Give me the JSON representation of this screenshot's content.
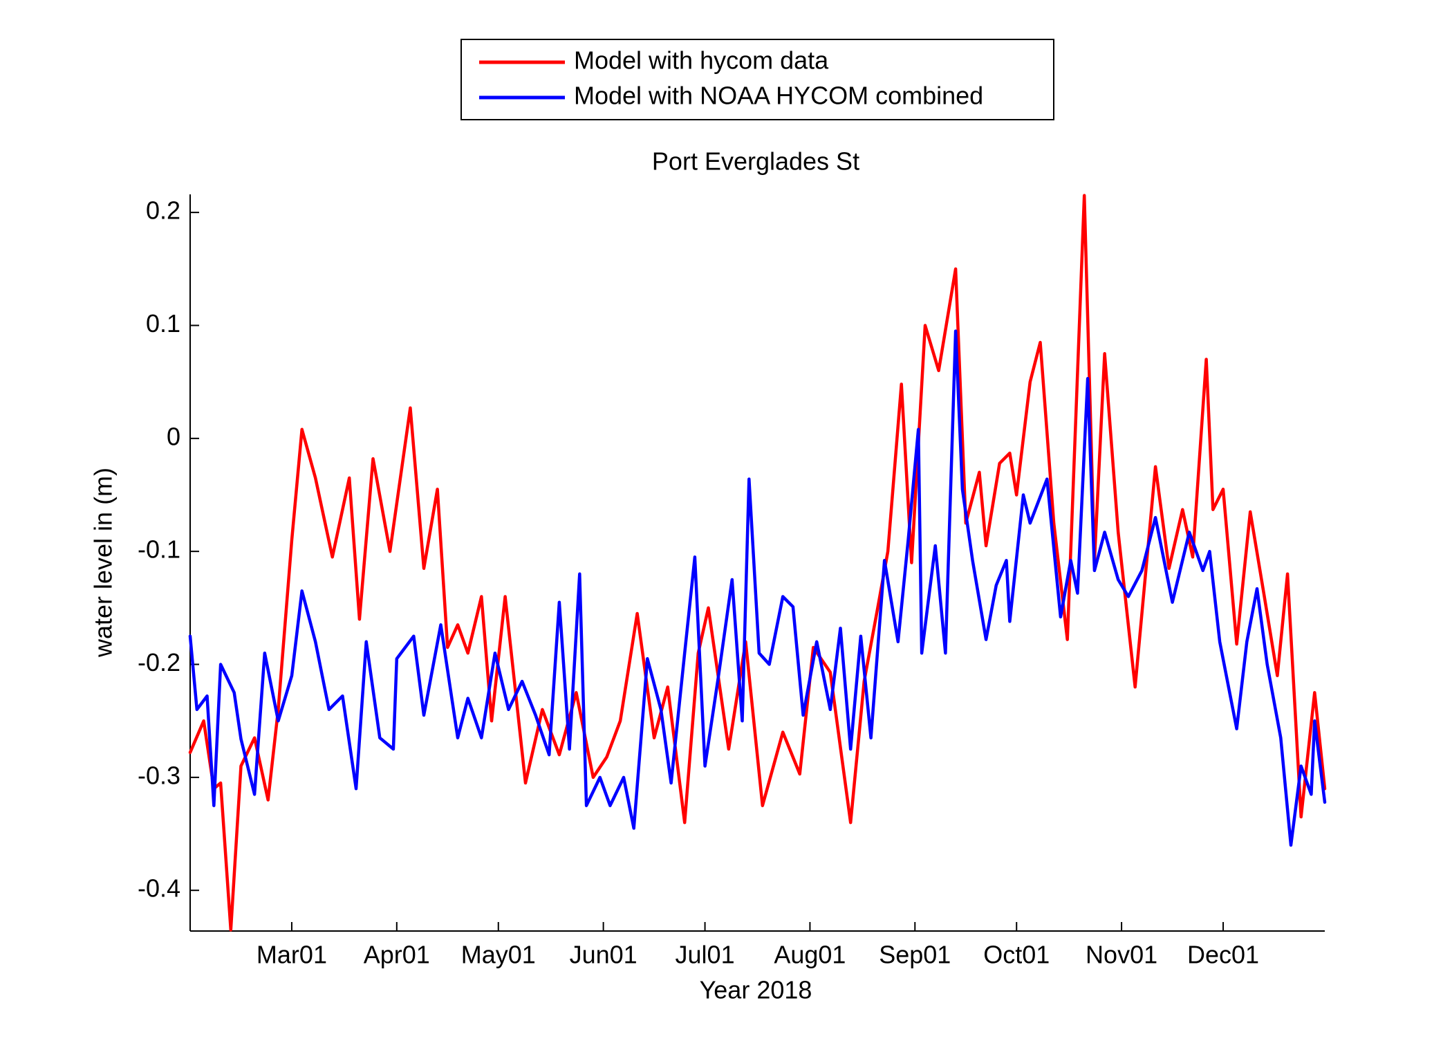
{
  "chart_data": {
    "type": "line",
    "title": "Port Everglades St",
    "xlabel": "Year 2018",
    "ylabel": "water level in (m)",
    "xlim": [
      "2018-01-30",
      "2018-12-31"
    ],
    "xticks": [
      {
        "value": "2018-03-01",
        "label": "Mar01"
      },
      {
        "value": "2018-04-01",
        "label": "Apr01"
      },
      {
        "value": "2018-05-01",
        "label": "May01"
      },
      {
        "value": "2018-06-01",
        "label": "Jun01"
      },
      {
        "value": "2018-07-01",
        "label": "Jul01"
      },
      {
        "value": "2018-08-01",
        "label": "Aug01"
      },
      {
        "value": "2018-09-01",
        "label": "Sep01"
      },
      {
        "value": "2018-10-01",
        "label": "Oct01"
      },
      {
        "value": "2018-11-01",
        "label": "Nov01"
      },
      {
        "value": "2018-12-01",
        "label": "Dec01"
      }
    ],
    "ylim": [
      -0.436,
      0.216
    ],
    "yticks": [
      -0.4,
      -0.3,
      -0.2,
      -0.1,
      0,
      0.1,
      0.2
    ],
    "grid": false,
    "legend": "top",
    "series": [
      {
        "name": "Model with hycom data",
        "color": "#ff0000",
        "x": [
          "2018-01-30",
          "2018-02-03",
          "2018-02-06",
          "2018-02-08",
          "2018-02-11",
          "2018-02-14",
          "2018-02-18",
          "2018-02-22",
          "2018-02-25",
          "2018-03-01",
          "2018-03-04",
          "2018-03-08",
          "2018-03-13",
          "2018-03-18",
          "2018-03-21",
          "2018-03-25",
          "2018-03-30",
          "2018-04-05",
          "2018-04-09",
          "2018-04-13",
          "2018-04-16",
          "2018-04-19",
          "2018-04-22",
          "2018-04-26",
          "2018-04-29",
          "2018-05-03",
          "2018-05-09",
          "2018-05-14",
          "2018-05-19",
          "2018-05-24",
          "2018-05-29",
          "2018-06-02",
          "2018-06-06",
          "2018-06-11",
          "2018-06-16",
          "2018-06-20",
          "2018-06-25",
          "2018-06-29",
          "2018-07-02",
          "2018-07-08",
          "2018-07-13",
          "2018-07-18",
          "2018-07-24",
          "2018-07-29",
          "2018-08-02",
          "2018-08-07",
          "2018-08-13",
          "2018-08-17",
          "2018-08-21",
          "2018-08-24",
          "2018-08-28",
          "2018-08-31",
          "2018-09-04",
          "2018-09-08",
          "2018-09-13",
          "2018-09-16",
          "2018-09-20",
          "2018-09-22",
          "2018-09-26",
          "2018-09-29",
          "2018-10-01",
          "2018-10-05",
          "2018-10-08",
          "2018-10-12",
          "2018-10-16",
          "2018-10-21",
          "2018-10-24",
          "2018-10-27",
          "2018-10-31",
          "2018-11-05",
          "2018-11-11",
          "2018-11-15",
          "2018-11-19",
          "2018-11-22",
          "2018-11-26",
          "2018-11-28",
          "2018-12-01",
          "2018-12-05",
          "2018-12-09",
          "2018-12-13",
          "2018-12-17",
          "2018-12-20",
          "2018-12-24",
          "2018-12-28",
          "2018-12-31"
        ],
        "values": [
          -0.278,
          -0.25,
          -0.31,
          -0.305,
          -0.435,
          -0.29,
          -0.265,
          -0.32,
          -0.24,
          -0.09,
          0.008,
          -0.035,
          -0.105,
          -0.035,
          -0.16,
          -0.018,
          -0.1,
          0.027,
          -0.115,
          -0.045,
          -0.185,
          -0.165,
          -0.19,
          -0.14,
          -0.25,
          -0.14,
          -0.305,
          -0.24,
          -0.28,
          -0.225,
          -0.3,
          -0.282,
          -0.25,
          -0.155,
          -0.265,
          -0.22,
          -0.34,
          -0.19,
          -0.15,
          -0.275,
          -0.18,
          -0.325,
          -0.26,
          -0.297,
          -0.185,
          -0.207,
          -0.34,
          -0.215,
          -0.15,
          -0.1,
          0.048,
          -0.11,
          0.1,
          0.06,
          0.15,
          -0.075,
          -0.03,
          -0.095,
          -0.022,
          -0.013,
          -0.05,
          0.05,
          0.085,
          -0.075,
          -0.178,
          0.215,
          -0.108,
          0.075,
          -0.083,
          -0.22,
          -0.025,
          -0.115,
          -0.063,
          -0.105,
          0.07,
          -0.063,
          -0.045,
          -0.182,
          -0.065,
          -0.137,
          -0.21,
          -0.12,
          -0.335,
          -0.225,
          -0.31
        ]
      },
      {
        "name": "Model with NOAA HYCOM combined",
        "color": "#0000ff",
        "x": [
          "2018-01-30",
          "2018-02-01",
          "2018-02-04",
          "2018-02-06",
          "2018-02-08",
          "2018-02-12",
          "2018-02-14",
          "2018-02-18",
          "2018-02-21",
          "2018-02-25",
          "2018-03-01",
          "2018-03-04",
          "2018-03-08",
          "2018-03-12",
          "2018-03-16",
          "2018-03-20",
          "2018-03-23",
          "2018-03-27",
          "2018-03-31",
          "2018-04-01",
          "2018-04-06",
          "2018-04-09",
          "2018-04-14",
          "2018-04-19",
          "2018-04-22",
          "2018-04-26",
          "2018-04-30",
          "2018-05-04",
          "2018-05-08",
          "2018-05-12",
          "2018-05-16",
          "2018-05-19",
          "2018-05-22",
          "2018-05-25",
          "2018-05-27",
          "2018-05-31",
          "2018-06-03",
          "2018-06-07",
          "2018-06-10",
          "2018-06-14",
          "2018-06-18",
          "2018-06-21",
          "2018-06-25",
          "2018-06-28",
          "2018-07-01",
          "2018-07-05",
          "2018-07-09",
          "2018-07-12",
          "2018-07-14",
          "2018-07-17",
          "2018-07-20",
          "2018-07-24",
          "2018-07-27",
          "2018-07-30",
          "2018-08-03",
          "2018-08-07",
          "2018-08-10",
          "2018-08-13",
          "2018-08-16",
          "2018-08-19",
          "2018-08-23",
          "2018-08-27",
          "2018-08-30",
          "2018-09-02",
          "2018-09-03",
          "2018-09-07",
          "2018-09-10",
          "2018-09-13",
          "2018-09-15",
          "2018-09-18",
          "2018-09-22",
          "2018-09-25",
          "2018-09-28",
          "2018-09-29",
          "2018-10-03",
          "2018-10-05",
          "2018-10-10",
          "2018-10-14",
          "2018-10-17",
          "2018-10-19",
          "2018-10-22",
          "2018-10-24",
          "2018-10-27",
          "2018-10-31",
          "2018-11-03",
          "2018-11-07",
          "2018-11-11",
          "2018-11-16",
          "2018-11-21",
          "2018-11-25",
          "2018-11-27",
          "2018-11-30",
          "2018-12-05",
          "2018-12-08",
          "2018-12-11",
          "2018-12-14",
          "2018-12-18",
          "2018-12-21",
          "2018-12-24",
          "2018-12-27",
          "2018-12-28",
          "2018-12-31"
        ],
        "values": [
          -0.175,
          -0.24,
          -0.228,
          -0.325,
          -0.2,
          -0.225,
          -0.266,
          -0.315,
          -0.19,
          -0.25,
          -0.21,
          -0.135,
          -0.18,
          -0.24,
          -0.228,
          -0.31,
          -0.18,
          -0.265,
          -0.275,
          -0.195,
          -0.175,
          -0.245,
          -0.165,
          -0.265,
          -0.23,
          -0.265,
          -0.19,
          -0.24,
          -0.215,
          -0.245,
          -0.28,
          -0.145,
          -0.275,
          -0.12,
          -0.325,
          -0.3,
          -0.325,
          -0.3,
          -0.345,
          -0.195,
          -0.24,
          -0.305,
          -0.19,
          -0.105,
          -0.29,
          -0.21,
          -0.125,
          -0.25,
          -0.036,
          -0.19,
          -0.2,
          -0.14,
          -0.149,
          -0.245,
          -0.18,
          -0.24,
          -0.168,
          -0.275,
          -0.175,
          -0.265,
          -0.108,
          -0.18,
          -0.09,
          0.008,
          -0.19,
          -0.095,
          -0.19,
          0.095,
          -0.045,
          -0.108,
          -0.178,
          -0.13,
          -0.108,
          -0.162,
          -0.05,
          -0.075,
          -0.036,
          -0.158,
          -0.108,
          -0.137,
          0.053,
          -0.117,
          -0.083,
          -0.125,
          -0.14,
          -0.117,
          -0.07,
          -0.145,
          -0.083,
          -0.117,
          -0.1,
          -0.18,
          -0.257,
          -0.18,
          -0.133,
          -0.2,
          -0.265,
          -0.36,
          -0.29,
          -0.315,
          -0.25,
          -0.322
        ]
      }
    ]
  }
}
